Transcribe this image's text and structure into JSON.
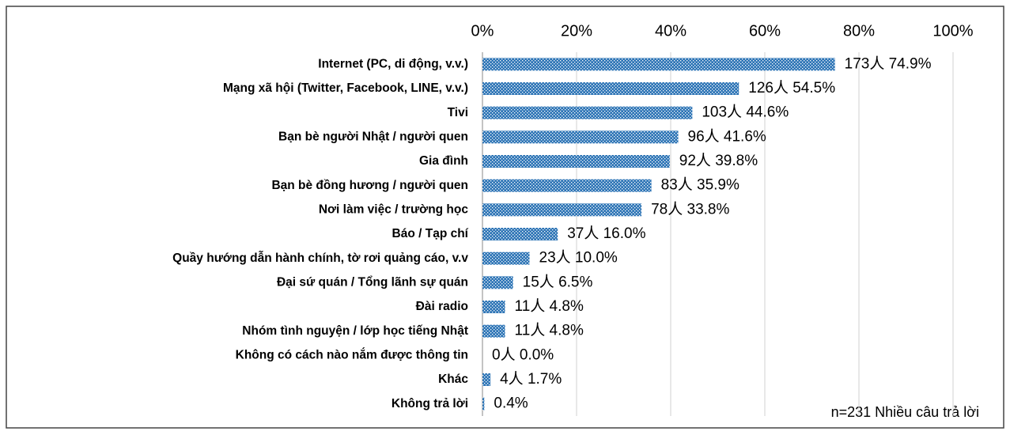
{
  "chart_data": {
    "type": "barh",
    "categories": [
      "Internet (PC, di động, v.v.)",
      "Mạng xã hội (Twitter, Facebook, LINE, v.v.)",
      "Tivi",
      "Bạn bè người Nhật / người quen",
      "Gia đình",
      "Bạn bè đồng hương / người quen",
      "Nơi làm việc / trường học",
      "Báo / Tạp chí",
      "Quầy hướng dẫn hành chính, tờ rơi quảng cáo, v.v",
      "Đại sứ quán / Tổng lãnh sự quán",
      "Đài radio",
      "Nhóm tình nguyện / lớp học tiếng Nhật",
      "Không có cách nào nắm được thông tin",
      "Khác",
      "Không trả lời"
    ],
    "values": [
      74.9,
      54.5,
      44.6,
      41.6,
      39.8,
      35.9,
      33.8,
      16.0,
      10.0,
      6.5,
      4.8,
      4.8,
      0.0,
      1.7,
      0.4
    ],
    "value_labels": [
      "173人 74.9%",
      "126人 54.5%",
      "103人 44.6%",
      "96人 41.6%",
      "92人 39.8%",
      "83人 35.9%",
      "78人 33.8%",
      "37人 16.0%",
      "23人 10.0%",
      "15人 6.5%",
      "11人 4.8%",
      "11人 4.8%",
      "0人 0.0%",
      "4人 1.7%",
      "0.4%"
    ],
    "color": "#2e75b6",
    "xlim": [
      0,
      100
    ],
    "xticks": [
      {
        "value": 0,
        "label": "0%"
      },
      {
        "value": 20,
        "label": "20%"
      },
      {
        "value": 40,
        "label": "40%"
      },
      {
        "value": 60,
        "label": "60%"
      },
      {
        "value": 80,
        "label": "80%"
      },
      {
        "value": 100,
        "label": "100%"
      }
    ],
    "grid": true,
    "annotation": "n=231 Nhiều câu trả lời"
  }
}
